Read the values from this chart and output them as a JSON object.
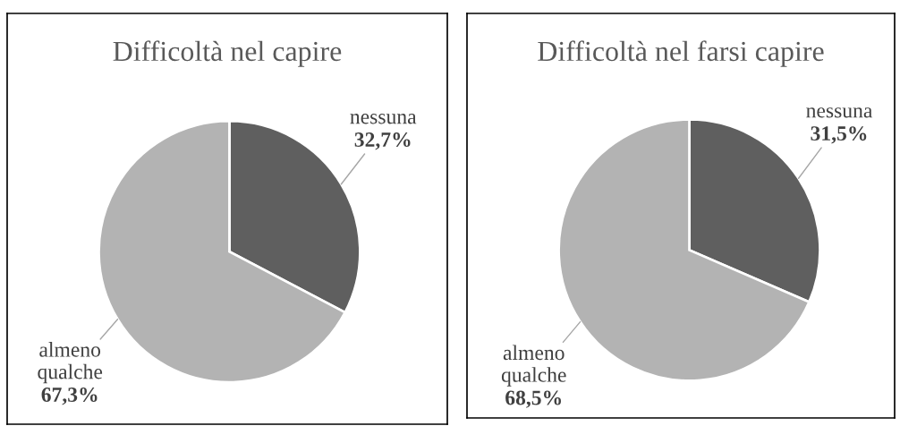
{
  "chart_data": [
    {
      "type": "pie",
      "title": "Difficoltà nel capire",
      "categories": [
        "nessuna",
        "almeno qualche"
      ],
      "values": [
        32.7,
        67.3
      ],
      "colors": [
        "#5f5f5f",
        "#b3b3b3"
      ],
      "value_labels": [
        "32,7%",
        "67,3%"
      ]
    },
    {
      "type": "pie",
      "title": "Difficoltà nel farsi capire",
      "categories": [
        "nessuna",
        "almeno qualche"
      ],
      "values": [
        31.5,
        68.5
      ],
      "colors": [
        "#5f5f5f",
        "#b3b3b3"
      ],
      "value_labels": [
        "31,5%",
        "68,5%"
      ]
    }
  ]
}
